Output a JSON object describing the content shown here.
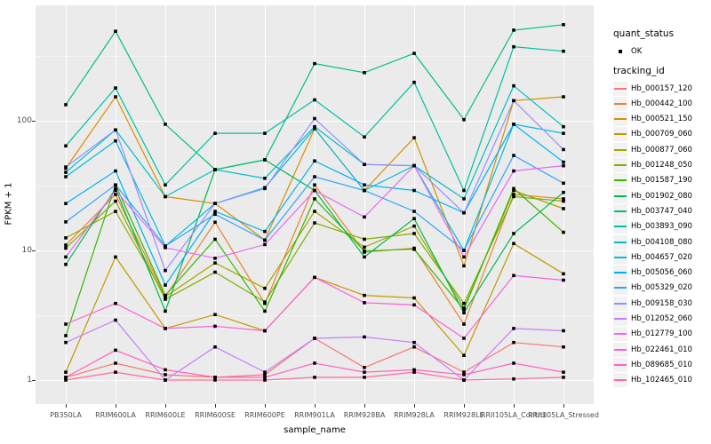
{
  "chart_data": {
    "type": "line",
    "title": "",
    "xlabel": "sample_name",
    "ylabel": "FPKM + 1",
    "y_scale": "log10",
    "ylim": [
      1,
      600
    ],
    "y_ticks": [
      1,
      10,
      100
    ],
    "grid": true,
    "panel_bg": "#EBEBEB",
    "point_color": "#000000",
    "categories": [
      "PB350LA",
      "RRIM600LA",
      "RRIM600LE",
      "RRIM600SE",
      "RRIM600PE",
      "RRIM901LA",
      "RRIM928BA",
      "RRIM928LA",
      "RRIM928LE",
      "RRII105LA_Control",
      "RRII105LA_Stressed"
    ],
    "legend": {
      "position": "right",
      "quant_status_title": "quant_status",
      "quant_status_items": [
        "OK"
      ],
      "tracking_title": "tracking_id"
    },
    "series": [
      {
        "name": "Hb_000157_120",
        "color": "#F8766D",
        "values": [
          1.05,
          1.35,
          1.1,
          1.05,
          1.1,
          2.1,
          1.25,
          1.8,
          1.15,
          1.95,
          1.8
        ]
      },
      {
        "name": "Hb_000442_100",
        "color": "#EA8331",
        "values": [
          11,
          27,
          4.4,
          16.5,
          3.9,
          32,
          9.7,
          10.4,
          2.7,
          27,
          25
        ]
      },
      {
        "name": "Hb_000521_150",
        "color": "#D89000",
        "values": [
          43,
          153,
          26,
          23,
          12,
          87,
          29,
          74,
          7.6,
          143,
          153
        ]
      },
      {
        "name": "Hb_000709_060",
        "color": "#C09B00",
        "values": [
          1.15,
          8.9,
          2.5,
          3.2,
          2.4,
          6.2,
          4.5,
          4.3,
          1.55,
          11.3,
          6.6
        ]
      },
      {
        "name": "Hb_000877_060",
        "color": "#A3A500",
        "values": [
          12.5,
          20,
          4.4,
          8.0,
          5.1,
          20,
          10.6,
          15.4,
          3.6,
          29,
          21
        ]
      },
      {
        "name": "Hb_001248_050",
        "color": "#7CAE00",
        "values": [
          10.4,
          24,
          4.2,
          6.8,
          4.0,
          16.3,
          12.2,
          13.5,
          3.9,
          26,
          24
        ]
      },
      {
        "name": "Hb_001587_190",
        "color": "#39B600",
        "values": [
          2.2,
          32,
          4.5,
          12.2,
          3.4,
          25,
          9.9,
          10.2,
          3.5,
          30,
          13.8
        ]
      },
      {
        "name": "Hb_001902_080",
        "color": "#00BB4E",
        "values": [
          7.8,
          30,
          3.4,
          42,
          50,
          29,
          8.9,
          17.6,
          3.3,
          13.5,
          28
        ]
      },
      {
        "name": "Hb_003747_040",
        "color": "#00BF7D",
        "values": [
          133,
          490,
          94,
          42,
          50,
          276,
          235,
          331,
          102,
          500,
          551
        ]
      },
      {
        "name": "Hb_003893_090",
        "color": "#00C1A3",
        "values": [
          64,
          179,
          32,
          80,
          80,
          145,
          75,
          198,
          29,
          372,
          344
        ]
      },
      {
        "name": "Hb_004108_080",
        "color": "#00BFC4",
        "values": [
          40,
          85,
          26,
          42,
          36,
          90,
          46,
          45,
          25,
          186,
          90
        ]
      },
      {
        "name": "Hb_004657_020",
        "color": "#00BAE0",
        "values": [
          37,
          70,
          10.8,
          23,
          30.5,
          87,
          29,
          45,
          10,
          94,
          80
        ]
      },
      {
        "name": "Hb_005056_060",
        "color": "#00B0F6",
        "values": [
          23,
          41,
          5.4,
          20,
          14,
          49,
          32,
          29,
          19.5,
          94,
          48
        ]
      },
      {
        "name": "Hb_005329_020",
        "color": "#35A2FF",
        "values": [
          16.6,
          32,
          10.8,
          19,
          12,
          37,
          29,
          20,
          10,
          54,
          33
        ]
      },
      {
        "name": "Hb_009158_030",
        "color": "#9590FF",
        "values": [
          44,
          85,
          7.0,
          23,
          30,
          104,
          46,
          45,
          19.5,
          143,
          60
        ]
      },
      {
        "name": "Hb_012052_060",
        "color": "#C77CFF",
        "values": [
          1.95,
          2.9,
          1.0,
          1.8,
          1.15,
          2.1,
          2.15,
          1.95,
          1.0,
          2.5,
          2.4
        ]
      },
      {
        "name": "Hb_012779_100",
        "color": "#E76BF3",
        "values": [
          8.9,
          29,
          10.5,
          8.7,
          11.1,
          29,
          18.1,
          45,
          8.9,
          41,
          45
        ]
      },
      {
        "name": "Hb_022461_010",
        "color": "#FA62DB",
        "values": [
          2.7,
          3.9,
          2.5,
          2.6,
          2.4,
          6.2,
          3.95,
          3.8,
          2.1,
          6.4,
          5.9
        ]
      },
      {
        "name": "Hb_089685_010",
        "color": "#FF62BC",
        "values": [
          1.05,
          1.7,
          1.2,
          1.05,
          1.05,
          1.35,
          1.15,
          1.2,
          1.1,
          1.35,
          1.15
        ]
      },
      {
        "name": "Hb_102465_010",
        "color": "#FF6A98",
        "values": [
          1.0,
          1.15,
          1.0,
          1.0,
          1.0,
          1.05,
          1.05,
          1.15,
          1.0,
          1.02,
          1.05
        ]
      }
    ]
  }
}
